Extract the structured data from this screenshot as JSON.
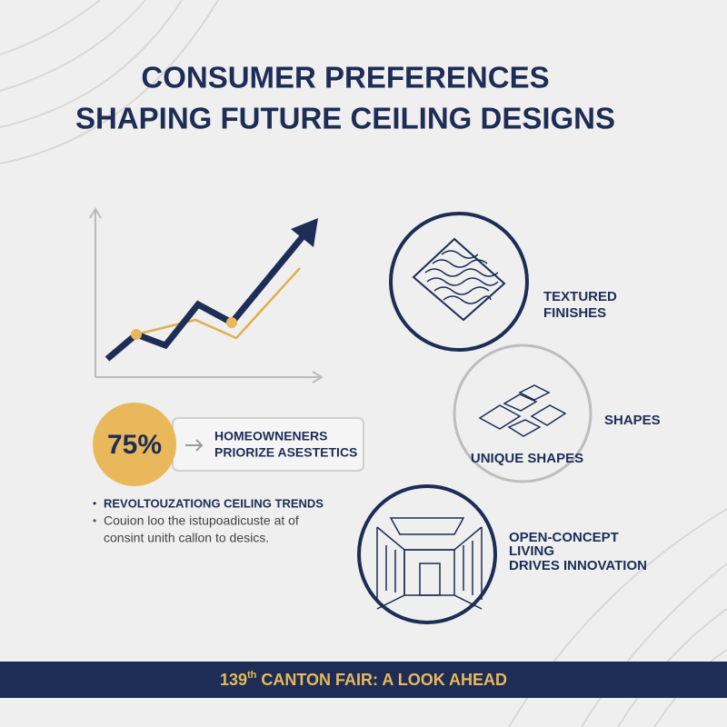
{
  "header": {
    "title": [
      "CONSUMER PREFERENCES",
      "SHAPING FUTURE CEILING DESIGNS"
    ]
  },
  "stat": {
    "value": "75%",
    "label": [
      "HOMEOWNENERS",
      "PRIORIZE ASESTETICS"
    ]
  },
  "bullets": {
    "heading": "REVOLTOUZATIONG CEILING TRENDS",
    "body": [
      "Couion loo the istupoadicuste at of",
      "consint unith callon to desics."
    ]
  },
  "features": [
    {
      "label": [
        "TEXTURED",
        "FINISHES"
      ]
    },
    {
      "label": [
        "SHAPES"
      ],
      "caption": "UNIQUE SHAPES"
    },
    {
      "label": [
        "OPEN-CONCEPT",
        "LIVING",
        "DRIVES INNOVATION"
      ]
    }
  ],
  "footer": {
    "number": "139",
    "suffix": "th",
    "text": " CANTON FAIR: A LOOK AHEAD"
  }
}
